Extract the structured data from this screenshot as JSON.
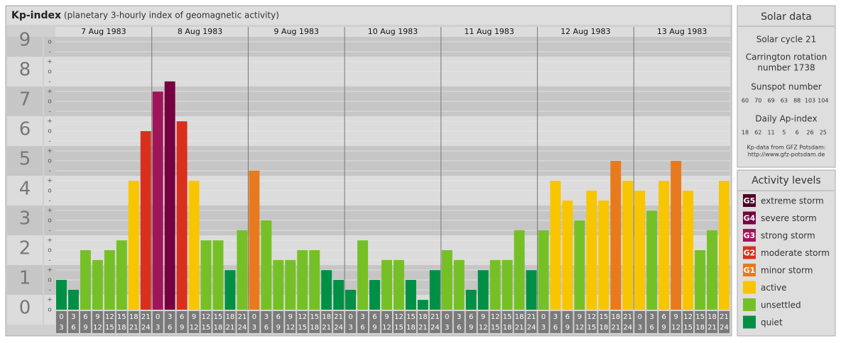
{
  "chart_data": {
    "type": "bar",
    "title": "Kp-index",
    "subtitle": "(planetary 3-hourly index of geomagnetic activity)",
    "ylim": [
      0,
      9
    ],
    "yticks": [
      0,
      1,
      2,
      3,
      4,
      5,
      6,
      7,
      8,
      9
    ],
    "minor_tick_labels": [
      "-",
      "o",
      "+"
    ],
    "hours": [
      [
        "0",
        "3"
      ],
      [
        "3",
        "6"
      ],
      [
        "6",
        "9"
      ],
      [
        "9",
        "12"
      ],
      [
        "12",
        "15"
      ],
      [
        "15",
        "18"
      ],
      [
        "18",
        "21"
      ],
      [
        "21",
        "24"
      ]
    ],
    "series": [
      {
        "name": "7 Aug 1983",
        "values": [
          1,
          0.67,
          2,
          1.67,
          2,
          2.33,
          4.33,
          6
        ],
        "colors": [
          "#009045",
          "#009045",
          "#76c027",
          "#76c027",
          "#76c027",
          "#76c027",
          "#f7c600",
          "#d9301e"
        ]
      },
      {
        "name": "8 Aug 1983",
        "values": [
          7.33,
          7.67,
          6.33,
          4.33,
          2.33,
          2.33,
          1.33,
          2.67
        ],
        "colors": [
          "#a0155a",
          "#750040",
          "#d9301e",
          "#f7c600",
          "#76c027",
          "#76c027",
          "#009045",
          "#76c027"
        ]
      },
      {
        "name": "9 Aug 1983",
        "values": [
          4.67,
          3,
          1.67,
          1.67,
          2,
          2,
          1.33,
          1
        ],
        "colors": [
          "#e87a1e",
          "#76c027",
          "#76c027",
          "#76c027",
          "#76c027",
          "#76c027",
          "#009045",
          "#009045"
        ]
      },
      {
        "name": "10 Aug 1983",
        "values": [
          0.67,
          2.33,
          1,
          1.67,
          1.67,
          1,
          0.33,
          1.33
        ],
        "colors": [
          "#009045",
          "#76c027",
          "#009045",
          "#76c027",
          "#76c027",
          "#009045",
          "#009045",
          "#009045"
        ]
      },
      {
        "name": "11 Aug 1983",
        "values": [
          2,
          1.67,
          0.67,
          1.33,
          1.67,
          1.67,
          2.67,
          1.33
        ],
        "colors": [
          "#76c027",
          "#76c027",
          "#009045",
          "#009045",
          "#76c027",
          "#76c027",
          "#76c027",
          "#009045"
        ]
      },
      {
        "name": "12 Aug 1983",
        "values": [
          2.67,
          4.33,
          3.67,
          3,
          4,
          3.67,
          5,
          4.33
        ],
        "colors": [
          "#76c027",
          "#f7c600",
          "#f7c600",
          "#76c027",
          "#f7c600",
          "#f7c600",
          "#e87a1e",
          "#f7c600"
        ]
      },
      {
        "name": "13 Aug 1983",
        "values": [
          4,
          3.33,
          4.33,
          5,
          4,
          2,
          2.67,
          4.33
        ],
        "colors": [
          "#f7c600",
          "#76c027",
          "#f7c600",
          "#e87a1e",
          "#f7c600",
          "#76c027",
          "#76c027",
          "#f7c600"
        ]
      }
    ]
  },
  "solar_data": {
    "title": "Solar data",
    "cycle": "Solar cycle 21",
    "carrington": [
      "Carrington rotation",
      "number 1738"
    ],
    "sunspot_title": "Sunspot number",
    "sunspot": [
      "60",
      "70",
      "69",
      "63",
      "88",
      "103",
      "104"
    ],
    "ap_title": "Daily Ap-index",
    "ap": [
      "18",
      "62",
      "11",
      "5",
      "6",
      "26",
      "25"
    ],
    "source": [
      "Kp-data from GFZ Potsdam:",
      "http://www.gfz-potsdam.de"
    ]
  },
  "activity_levels": {
    "title": "Activity levels",
    "items": [
      {
        "code": "G5",
        "label": "extreme storm",
        "color": "#4d0026"
      },
      {
        "code": "G4",
        "label": "severe storm",
        "color": "#750040"
      },
      {
        "code": "G3",
        "label": "strong storm",
        "color": "#a0155a"
      },
      {
        "code": "G2",
        "label": "moderate storm",
        "color": "#d9301e"
      },
      {
        "code": "G1",
        "label": "minor storm",
        "color": "#e87a1e"
      },
      {
        "code": null,
        "label": "active",
        "color": "#f7c600"
      },
      {
        "code": null,
        "label": "unsettled",
        "color": "#76c027"
      },
      {
        "code": null,
        "label": "quiet",
        "color": "#009045"
      }
    ]
  }
}
